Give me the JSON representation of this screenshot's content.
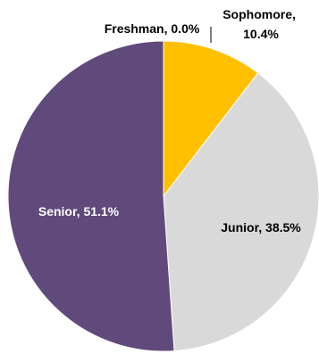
{
  "chart_data": {
    "type": "pie",
    "title": "",
    "slices": [
      {
        "label": "Freshman",
        "value": 0.0,
        "value_text": "0.0%",
        "color": "#4472C4"
      },
      {
        "label": "Sophomore",
        "value": 10.4,
        "value_text": "10.4%",
        "color": "#FFC000"
      },
      {
        "label": "Junior",
        "value": 38.5,
        "value_text": "38.5%",
        "color": "#D9D9D9"
      },
      {
        "label": "Senior",
        "value": 51.1,
        "value_text": "51.1%",
        "color": "#604A7B"
      }
    ],
    "label_colors": {
      "Freshman": "#000000",
      "Sophomore": "#000000",
      "Junior": "#000000",
      "Senior": "#ffffff"
    },
    "legend": "none"
  }
}
